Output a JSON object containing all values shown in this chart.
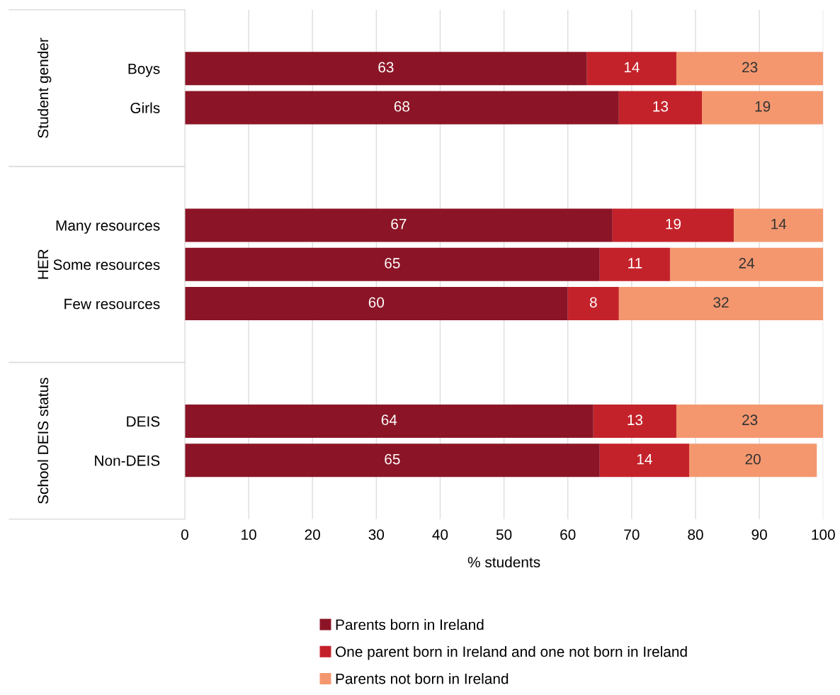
{
  "chart_data": {
    "type": "bar",
    "orientation": "horizontal",
    "stacked": true,
    "categories": [
      null,
      "Boys",
      "Girls",
      null,
      null,
      "Many resources",
      "Some resources",
      "Few resources",
      null,
      null,
      "DEIS",
      "Non-DEIS",
      null
    ],
    "series": [
      {
        "name": "Parents born in Ireland",
        "color": "#8b1526",
        "values": [
          null,
          63,
          68,
          null,
          null,
          67,
          65,
          60,
          null,
          null,
          64,
          65,
          null
        ]
      },
      {
        "name": "One parent born in Ireland and one not born in Ireland",
        "color": "#c4222a",
        "values": [
          null,
          14,
          13,
          null,
          null,
          19,
          11,
          8,
          null,
          null,
          13,
          14,
          null
        ]
      },
      {
        "name": "Parents not born in Ireland",
        "color": "#f4976f",
        "values": [
          null,
          23,
          19,
          null,
          null,
          14,
          24,
          32,
          null,
          null,
          23,
          20,
          null
        ]
      }
    ],
    "xlim": [
      0,
      100
    ],
    "xticks": [
      0,
      10,
      20,
      30,
      40,
      50,
      60,
      70,
      80,
      90,
      100
    ],
    "xlabel": "% students",
    "annotations": [
      "Student gender",
      "HER",
      "School DEIS status"
    ],
    "data_labels": true,
    "grid": "x",
    "legend": "bottom"
  }
}
